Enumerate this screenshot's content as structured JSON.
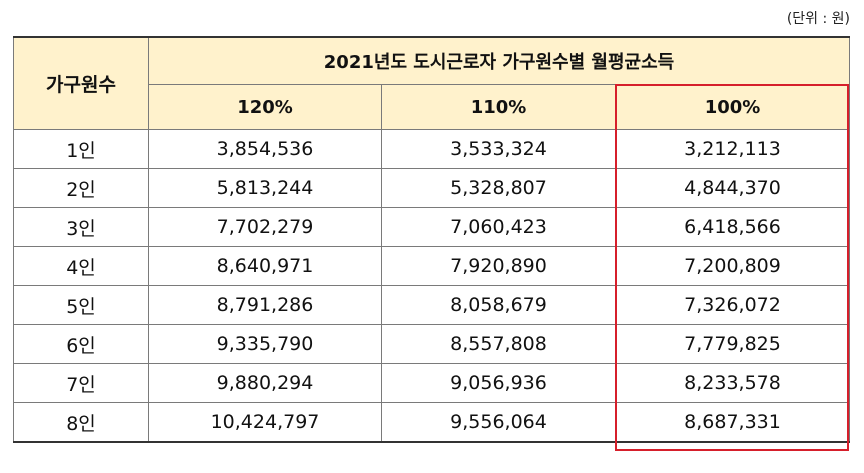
{
  "unit_note": "(단위 : 원)",
  "table": {
    "row_header": "가구원수",
    "group_header": "2021년도 도시근로자 가구원수별 월평균소득",
    "columns": [
      "120%",
      "110%",
      "100%"
    ],
    "rows": [
      {
        "label": "1인",
        "values": [
          "3,854,536",
          "3,533,324",
          "3,212,113"
        ]
      },
      {
        "label": "2인",
        "values": [
          "5,813,244",
          "5,328,807",
          "4,844,370"
        ]
      },
      {
        "label": "3인",
        "values": [
          "7,702,279",
          "7,060,423",
          "6,418,566"
        ]
      },
      {
        "label": "4인",
        "values": [
          "8,640,971",
          "7,920,890",
          "7,200,809"
        ]
      },
      {
        "label": "5인",
        "values": [
          "8,791,286",
          "8,058,679",
          "7,326,072"
        ]
      },
      {
        "label": "6인",
        "values": [
          "9,335,790",
          "8,557,808",
          "7,779,825"
        ]
      },
      {
        "label": "7인",
        "values": [
          "9,880,294",
          "9,056,936",
          "8,233,578"
        ]
      },
      {
        "label": "8인",
        "values": [
          "10,424,797",
          "9,556,064",
          "8,687,331"
        ]
      }
    ]
  },
  "colors": {
    "header_bg": "#fff2cc",
    "highlight_border": "#d61f2b"
  }
}
